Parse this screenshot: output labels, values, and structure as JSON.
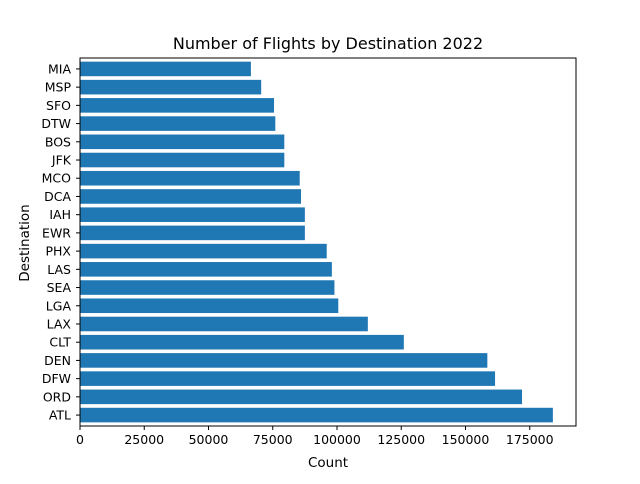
{
  "chart_data": {
    "type": "bar",
    "orientation": "horizontal",
    "title": "Number of Flights by Destination 2022",
    "xlabel": "Count",
    "ylabel": "Destination",
    "xlim": [
      0,
      193000
    ],
    "xticks": [
      0,
      25000,
      50000,
      75000,
      100000,
      125000,
      150000,
      175000
    ],
    "xtick_labels": [
      "0",
      "25000",
      "50000",
      "75000",
      "100000",
      "125000",
      "150000",
      "175000"
    ],
    "grid": false,
    "legend": "none",
    "bar_color": "#1f77b4",
    "categories": [
      "ATL",
      "ORD",
      "DFW",
      "DEN",
      "CLT",
      "LAX",
      "LGA",
      "SEA",
      "LAS",
      "PHX",
      "EWR",
      "IAH",
      "DCA",
      "MCO",
      "JFK",
      "BOS",
      "DTW",
      "SFO",
      "MSP",
      "MIA"
    ],
    "values": [
      184000,
      172000,
      161500,
      158500,
      126000,
      112000,
      100500,
      99000,
      98000,
      96000,
      87500,
      87500,
      86000,
      85500,
      79500,
      79500,
      76000,
      75500,
      70500,
      66500
    ]
  }
}
